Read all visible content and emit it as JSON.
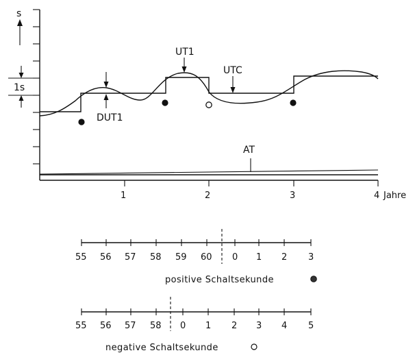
{
  "labels": {
    "y_axis": "s",
    "one_second": "1s",
    "x_unit": "Jahre",
    "dut1": "DUT1",
    "ut1": "UT1",
    "utc": "UTC",
    "at": "AT"
  },
  "x_ticks": [
    "1",
    "2",
    "3",
    "4"
  ],
  "scale_positive": {
    "ticks": [
      "55",
      "56",
      "57",
      "58",
      "59",
      "60",
      "0",
      "1",
      "2",
      "3"
    ],
    "caption": "positive Schaltsekunde",
    "symbol": "filled-circle"
  },
  "scale_negative": {
    "ticks": [
      "55",
      "56",
      "57",
      "58",
      "0",
      "1",
      "2",
      "3",
      "4",
      "5"
    ],
    "caption": "negative Schaltsekunde",
    "symbol": "open-circle"
  }
}
